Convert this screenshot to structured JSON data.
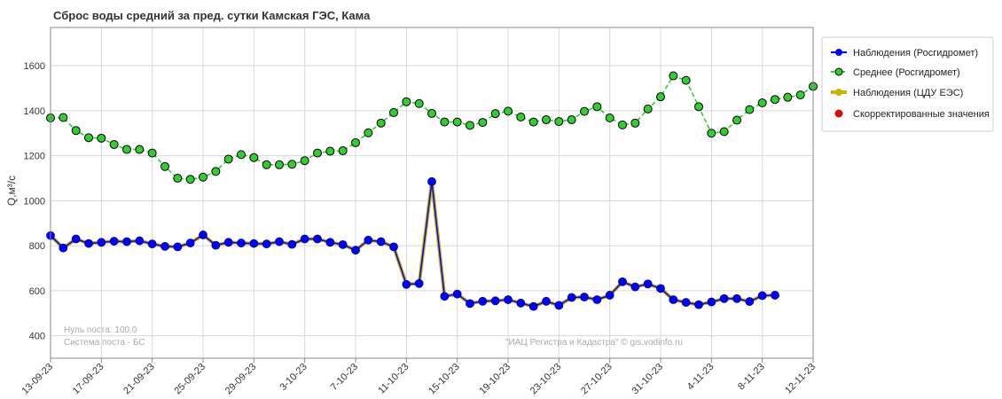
{
  "chart_data": {
    "type": "line",
    "title": "Сброс воды средний за пред. сутки Камская ГЭС,  Кама",
    "ylabel": "Q,м³/c",
    "xlabel": "",
    "ylim": [
      300,
      1770
    ],
    "yticks": [
      400,
      600,
      800,
      1000,
      1200,
      1400,
      1600
    ],
    "x_start": "2023-09-13",
    "x_end": "2023-11-12",
    "xticks": [
      "13-09-23",
      "17-09-23",
      "21-09-23",
      "25-09-23",
      "29-09-23",
      "3-10-23",
      "7-10-23",
      "11-10-23",
      "15-10-23",
      "19-10-23",
      "23-10-23",
      "27-10-23",
      "31-10-23",
      "4-11-23",
      "8-11-23",
      "12-11-23"
    ],
    "grid": true,
    "legend_position": "right",
    "series": [
      {
        "name": "Наблюдения (Росгидромет)",
        "color": "#0000ff",
        "line_style": "solid",
        "x": [
          "2023-09-13",
          "2023-09-14",
          "2023-09-15",
          "2023-09-16",
          "2023-09-17",
          "2023-09-18",
          "2023-09-19",
          "2023-09-20",
          "2023-09-21",
          "2023-09-22",
          "2023-09-23",
          "2023-09-24",
          "2023-09-25",
          "2023-09-26",
          "2023-09-27",
          "2023-09-28",
          "2023-09-29",
          "2023-09-30",
          "2023-10-01",
          "2023-10-02",
          "2023-10-03",
          "2023-10-04",
          "2023-10-05",
          "2023-10-06",
          "2023-10-07",
          "2023-10-08",
          "2023-10-09",
          "2023-10-10",
          "2023-10-11",
          "2023-10-12",
          "2023-10-13",
          "2023-10-14",
          "2023-10-15",
          "2023-10-16",
          "2023-10-17",
          "2023-10-18",
          "2023-10-19",
          "2023-10-20",
          "2023-10-21",
          "2023-10-22",
          "2023-10-23",
          "2023-10-24",
          "2023-10-25",
          "2023-10-26",
          "2023-10-27",
          "2023-10-28",
          "2023-10-29",
          "2023-10-30",
          "2023-10-31",
          "2023-11-01",
          "2023-11-02",
          "2023-11-03",
          "2023-11-04",
          "2023-11-05",
          "2023-11-06",
          "2023-11-07",
          "2023-11-08",
          "2023-11-09"
        ],
        "values": [
          845,
          790,
          830,
          810,
          815,
          820,
          818,
          822,
          808,
          797,
          795,
          812,
          848,
          802,
          815,
          812,
          810,
          808,
          818,
          806,
          830,
          830,
          815,
          805,
          780,
          825,
          818,
          795,
          628,
          632,
          1085,
          575,
          585,
          543,
          553,
          555,
          560,
          545,
          530,
          553,
          535,
          570,
          572,
          560,
          580,
          640,
          617,
          630,
          610,
          560,
          548,
          538,
          550,
          565,
          565,
          552,
          578,
          580
        ]
      },
      {
        "name": "Среднее (Росгидромет)",
        "color": "#33cc33",
        "line_style": "dashed",
        "x": [
          "2023-09-13",
          "2023-09-14",
          "2023-09-15",
          "2023-09-16",
          "2023-09-17",
          "2023-09-18",
          "2023-09-19",
          "2023-09-20",
          "2023-09-21",
          "2023-09-22",
          "2023-09-23",
          "2023-09-24",
          "2023-09-25",
          "2023-09-26",
          "2023-09-27",
          "2023-09-28",
          "2023-09-29",
          "2023-09-30",
          "2023-10-01",
          "2023-10-02",
          "2023-10-03",
          "2023-10-04",
          "2023-10-05",
          "2023-10-06",
          "2023-10-07",
          "2023-10-08",
          "2023-10-09",
          "2023-10-10",
          "2023-10-11",
          "2023-10-12",
          "2023-10-13",
          "2023-10-14",
          "2023-10-15",
          "2023-10-16",
          "2023-10-17",
          "2023-10-18",
          "2023-10-19",
          "2023-10-20",
          "2023-10-21",
          "2023-10-22",
          "2023-10-23",
          "2023-10-24",
          "2023-10-25",
          "2023-10-26",
          "2023-10-27",
          "2023-10-28",
          "2023-10-29",
          "2023-10-30",
          "2023-10-31",
          "2023-11-01",
          "2023-11-02",
          "2023-11-03",
          "2023-11-04",
          "2023-11-05",
          "2023-11-06",
          "2023-11-07",
          "2023-11-08",
          "2023-11-09",
          "2023-11-10",
          "2023-11-11",
          "2023-11-12"
        ],
        "values": [
          1368,
          1370,
          1312,
          1280,
          1278,
          1250,
          1228,
          1228,
          1212,
          1152,
          1100,
          1095,
          1105,
          1130,
          1185,
          1205,
          1192,
          1160,
          1160,
          1162,
          1178,
          1212,
          1220,
          1222,
          1258,
          1302,
          1345,
          1392,
          1440,
          1432,
          1388,
          1350,
          1350,
          1335,
          1348,
          1387,
          1398,
          1372,
          1350,
          1360,
          1352,
          1360,
          1397,
          1418,
          1368,
          1337,
          1345,
          1408,
          1462,
          1555,
          1535,
          1418,
          1300,
          1307,
          1358,
          1405,
          1435,
          1450,
          1460,
          1470,
          1508
        ]
      },
      {
        "name": "Наблюдения (ЦДУ ЕЭС)",
        "color": "#c8b400",
        "line_style": "solid",
        "x": [
          "2023-09-13",
          "2023-09-14",
          "2023-09-15",
          "2023-09-16",
          "2023-09-17",
          "2023-09-18",
          "2023-09-19",
          "2023-09-20",
          "2023-09-21",
          "2023-09-22",
          "2023-09-23",
          "2023-09-24",
          "2023-09-25",
          "2023-09-26",
          "2023-09-27",
          "2023-09-28",
          "2023-09-29",
          "2023-09-30",
          "2023-10-01",
          "2023-10-02",
          "2023-10-03",
          "2023-10-04",
          "2023-10-05",
          "2023-10-06",
          "2023-10-07",
          "2023-10-08",
          "2023-10-09",
          "2023-10-10",
          "2023-10-11",
          "2023-10-12",
          "2023-10-13",
          "2023-10-14",
          "2023-10-15",
          "2023-10-16",
          "2023-10-17",
          "2023-10-18",
          "2023-10-19",
          "2023-10-20",
          "2023-10-21",
          "2023-10-22",
          "2023-10-23",
          "2023-10-24",
          "2023-10-25",
          "2023-10-26",
          "2023-10-27",
          "2023-10-28",
          "2023-10-29",
          "2023-10-30",
          "2023-10-31",
          "2023-11-01",
          "2023-11-02",
          "2023-11-03",
          "2023-11-04",
          "2023-11-05",
          "2023-11-06",
          "2023-11-07",
          "2023-11-08",
          "2023-11-09"
        ],
        "values": [
          845,
          790,
          830,
          810,
          815,
          820,
          818,
          822,
          808,
          797,
          795,
          812,
          848,
          802,
          815,
          812,
          810,
          808,
          818,
          806,
          830,
          830,
          815,
          805,
          780,
          825,
          818,
          795,
          628,
          632,
          1085,
          575,
          585,
          543,
          553,
          555,
          560,
          545,
          530,
          553,
          535,
          570,
          572,
          560,
          580,
          640,
          617,
          630,
          610,
          560,
          548,
          538,
          550,
          565,
          565,
          552,
          578,
          580
        ]
      },
      {
        "name": "Скорректированные значения",
        "color": "#cc1111",
        "line_style": "none",
        "x": [],
        "values": []
      }
    ],
    "annotations": [
      "Нуль поста: 100.0",
      "Система поста - БС",
      "\"ИАЦ Регистра и Кадастра\" © gis.vodinfo.ru"
    ]
  }
}
